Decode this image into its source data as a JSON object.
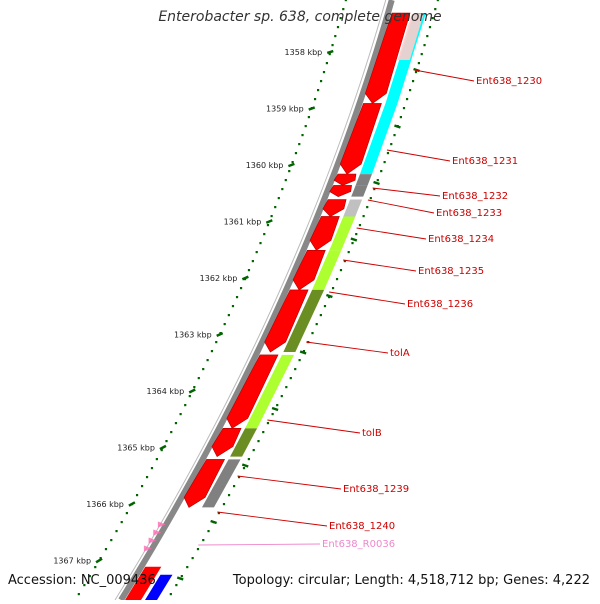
{
  "title": "Enterobacter sp. 638, complete genome",
  "accession": "Accession: NC_009436",
  "topology": "Topology: circular; Length: 4,518,712 bp; Genes: 4,222",
  "ticks": [
    {
      "label": "1358 kbp"
    },
    {
      "label": "1359 kbp"
    },
    {
      "label": "1360 kbp"
    },
    {
      "label": "1361 kbp"
    },
    {
      "label": "1362 kbp"
    },
    {
      "label": "1363 kbp"
    },
    {
      "label": "1364 kbp"
    },
    {
      "label": "1365 kbp"
    },
    {
      "label": "1366 kbp"
    },
    {
      "label": "1367 kbp"
    }
  ],
  "genes": [
    {
      "label": "Ent638_1230",
      "color": "#ff0000",
      "cds_color": "#00ffff"
    },
    {
      "label": "Ent638_1231",
      "color": "#ff0000",
      "cds_color": "#00ffff"
    },
    {
      "label": "Ent638_1232",
      "color": "#ff0000",
      "cds_color": "#808080"
    },
    {
      "label": "Ent638_1233",
      "color": "#ff0000",
      "cds_color": "#808080"
    },
    {
      "label": "Ent638_1234",
      "color": "#ff0000",
      "cds_color": "#c0c0c0"
    },
    {
      "label": "Ent638_1235",
      "color": "#ff0000",
      "cds_color": "#adff2f"
    },
    {
      "label": "Ent638_1236",
      "color": "#ff0000",
      "cds_color": "#adff2f"
    },
    {
      "label": "tolA",
      "color": "#ff0000",
      "cds_color": "#6b8e23"
    },
    {
      "label": "tolB",
      "color": "#ff0000",
      "cds_color": "#adff2f"
    },
    {
      "label": "Ent638_1239",
      "color": "#ff0000",
      "cds_color": "#6b8e23"
    },
    {
      "label": "Ent638_1240",
      "color": "#ff0000",
      "cds_color": "#808080"
    },
    {
      "label": "Ent638_R0036",
      "color": "#ff69b4",
      "cds_color": "#ff69b4"
    }
  ],
  "colors": {
    "label_red": "#cc0000",
    "label_pink": "#ee88cc",
    "tick_green": "#006400",
    "backbone": "#888888"
  }
}
